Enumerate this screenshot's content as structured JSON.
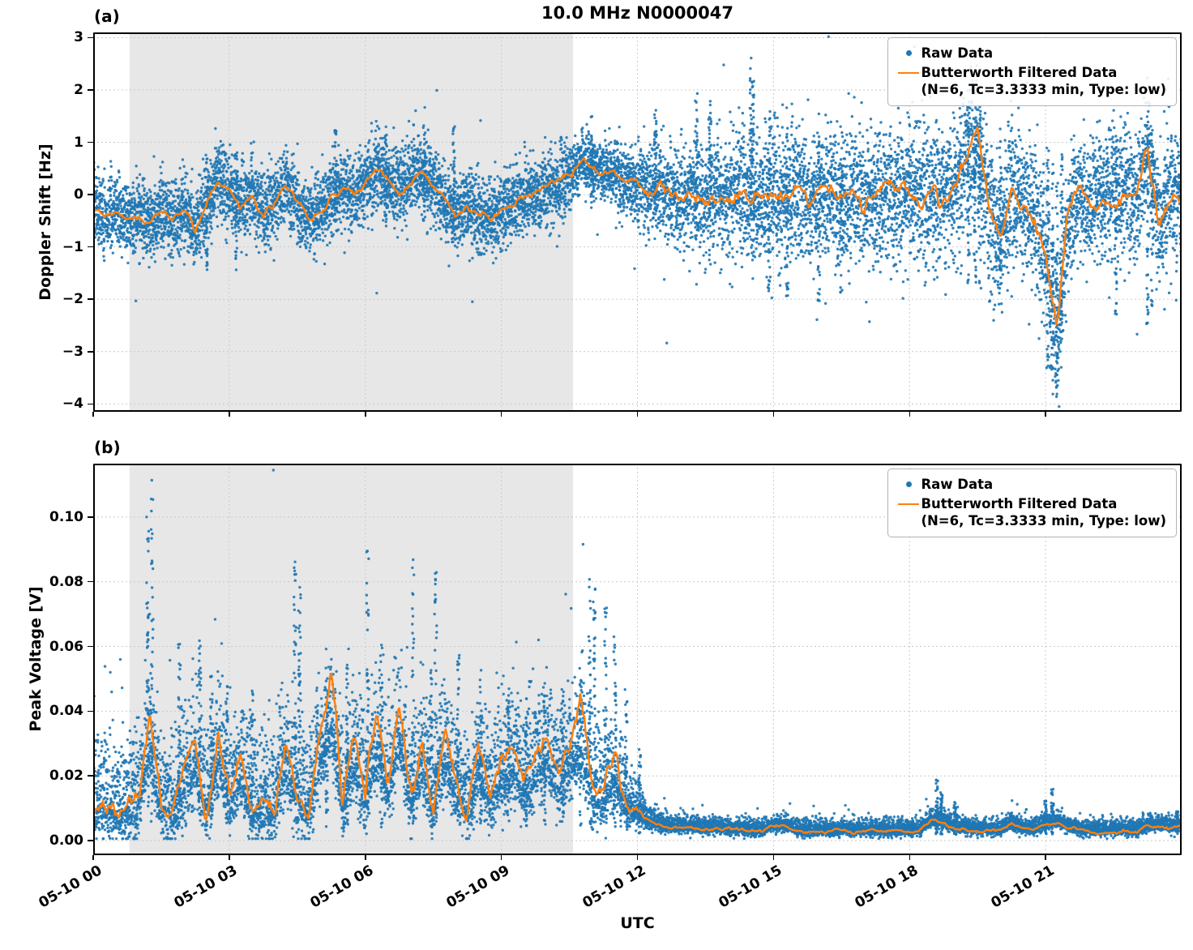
{
  "title": "10.0 MHz N0000047",
  "xlabel": "UTC",
  "x_tick_labels": [
    "05-10 00",
    "05-10 03",
    "05-10 06",
    "05-10 09",
    "05-10 12",
    "05-10 15",
    "05-10 18",
    "05-10 21"
  ],
  "x_tick_hours": [
    0,
    3,
    6,
    9,
    12,
    15,
    18,
    21
  ],
  "colors": {
    "raw": "#1f77b4",
    "filtered": "#ff7f0e",
    "shade": "#e7e7e7",
    "grid": "#c9c9c9",
    "frame": "#000000"
  },
  "legend": {
    "raw_label": "Raw Data",
    "filtered_line1": "Butterworth Filtered Data",
    "filtered_line2": "(N=6, Tc=3.3333 min, Type: low)",
    "location": "upper right"
  },
  "chart_data": [
    {
      "type": "scatter",
      "panel_label": "(a)",
      "ylabel": "Doppler Shift [Hz]",
      "ylim": [
        -4.15,
        3.1
      ],
      "yticks": [
        3,
        2,
        1,
        0,
        -1,
        -2,
        -3,
        -4
      ],
      "ytick_format": "int",
      "x_range_hours": [
        0,
        24
      ],
      "grid": true,
      "shaded_region_hours": [
        0.8,
        10.58
      ],
      "series": [
        {
          "name": "Raw Data",
          "kind": "scatter",
          "color": "#1f77b4"
        },
        {
          "name": "Butterworth Filtered Data (N=6, Tc=3.3333 min, Type: low)",
          "kind": "line",
          "color": "#ff7f0e"
        }
      ],
      "filtered_line": {
        "t0": 0,
        "dt": 0.25,
        "y": [
          -0.25,
          -0.45,
          -0.3,
          -0.55,
          -0.4,
          -0.6,
          -0.3,
          -0.5,
          -0.25,
          -0.7,
          -0.15,
          0.3,
          0.05,
          -0.2,
          0.05,
          -0.35,
          -0.15,
          0.15,
          -0.25,
          -0.5,
          -0.3,
          -0.05,
          0.15,
          -0.1,
          0.2,
          0.5,
          0.3,
          0.1,
          0.3,
          0.5,
          0.2,
          -0.15,
          -0.4,
          -0.2,
          -0.35,
          -0.45,
          -0.3,
          -0.15,
          -0.05,
          0.0,
          0.1,
          0.2,
          0.35,
          0.7,
          0.55,
          0.45,
          0.35,
          0.25,
          0.15,
          0.05,
          0.1,
          -0.05,
          -0.1,
          0.05,
          -0.15,
          0.0,
          -0.1,
          0.1,
          -0.05,
          -0.2,
          0.0,
          -0.1,
          0.05,
          -0.15,
          -0.05,
          0.1,
          -0.1,
          0.0,
          -0.15,
          -0.05,
          0.05,
          -0.1,
          0.0,
          -0.1,
          0.05,
          -0.05,
          0.1,
          0.55,
          1.2,
          -0.35,
          -0.95,
          0.15,
          -0.1,
          -0.4,
          -1.1,
          -2.8,
          -0.55,
          0.1,
          -0.2,
          0.0,
          -0.15,
          0.05,
          -0.1,
          0.9,
          -0.55,
          -0.1,
          -0.2
        ]
      },
      "scatter_envelope": {
        "t": [
          0,
          10.3,
          10.8,
          11.5,
          12,
          12.5,
          13.5,
          15,
          18,
          19,
          19.6,
          20,
          21,
          21.4,
          22,
          24
        ],
        "sigma": [
          0.36,
          0.36,
          0.26,
          0.28,
          0.35,
          0.45,
          0.55,
          0.6,
          0.62,
          0.65,
          0.75,
          0.65,
          0.7,
          0.55,
          0.62,
          0.62
        ]
      },
      "columns": [
        [
          2.5,
          -1.5,
          0.85
        ],
        [
          3.15,
          -1.45,
          0.95
        ],
        [
          5.35,
          -0.7,
          1.3
        ],
        [
          6.45,
          -0.6,
          1.35
        ],
        [
          7.3,
          -0.5,
          1.4
        ],
        [
          7.95,
          -0.6,
          1.35
        ],
        [
          11.0,
          -0.3,
          1.5
        ],
        [
          12.4,
          -0.4,
          1.65
        ],
        [
          13.3,
          -0.6,
          2.1
        ],
        [
          13.6,
          -0.5,
          1.8
        ],
        [
          14.5,
          -0.4,
          2.65
        ],
        [
          14.55,
          -0.5,
          2.2
        ],
        [
          14.9,
          -1.9,
          1.6
        ],
        [
          15.3,
          -2.0,
          1.2
        ],
        [
          16.0,
          -2.1,
          1.3
        ],
        [
          16.5,
          -1.9,
          1.2
        ],
        [
          19.3,
          -1.9,
          1.8
        ],
        [
          19.45,
          -2.1,
          1.7
        ],
        [
          19.55,
          -1.8,
          1.6
        ],
        [
          20.0,
          -1.6,
          1.3
        ],
        [
          21.05,
          -3.3,
          0.9
        ],
        [
          21.15,
          -3.85,
          0.6
        ],
        [
          21.25,
          -3.7,
          0.4
        ],
        [
          21.35,
          -3.0,
          0.8
        ],
        [
          22.55,
          -2.3,
          1.2
        ],
        [
          23.25,
          -2.5,
          1.5
        ],
        [
          23.35,
          -2.2,
          1.3
        ]
      ],
      "line_jitter": {
        "t": [
          0,
          12,
          12.5,
          24
        ],
        "amp": [
          0.06,
          0.06,
          0.12,
          0.12
        ]
      },
      "outlier_prob": 0.012,
      "clamp": [
        -4.05,
        3.02
      ],
      "step_hours": 0.004,
      "points_per_step": 2,
      "seed": 42
    },
    {
      "type": "scatter",
      "panel_label": "(b)",
      "ylabel": "Peak Voltage [V]",
      "ylim": [
        -0.0045,
        0.1165
      ],
      "yticks": [
        0.0,
        0.02,
        0.04,
        0.06,
        0.08,
        0.1
      ],
      "ytick_format": "2f",
      "x_range_hours": [
        0,
        24
      ],
      "grid": true,
      "shaded_region_hours": [
        0.8,
        10.58
      ],
      "series": [
        {
          "name": "Raw Data",
          "kind": "scatter",
          "color": "#1f77b4"
        },
        {
          "name": "Butterworth Filtered Data (N=6, Tc=3.3333 min, Type: low)",
          "kind": "line",
          "color": "#ff7f0e"
        }
      ],
      "filtered_line": {
        "t0": 0,
        "dt": 0.25,
        "y": [
          0.01,
          0.012,
          0.008,
          0.01,
          0.014,
          0.042,
          0.01,
          0.008,
          0.02,
          0.03,
          0.01,
          0.035,
          0.014,
          0.025,
          0.008,
          0.012,
          0.01,
          0.03,
          0.014,
          0.008,
          0.035,
          0.052,
          0.012,
          0.03,
          0.014,
          0.04,
          0.018,
          0.045,
          0.014,
          0.03,
          0.01,
          0.035,
          0.018,
          0.01,
          0.03,
          0.014,
          0.025,
          0.03,
          0.018,
          0.028,
          0.035,
          0.02,
          0.03,
          0.042,
          0.018,
          0.014,
          0.025,
          0.01,
          0.008,
          0.006,
          0.005,
          0.004,
          0.004,
          0.0038,
          0.0035,
          0.0035,
          0.0032,
          0.003,
          0.003,
          0.0028,
          0.0045,
          0.0045,
          0.003,
          0.0028,
          0.003,
          0.0028,
          0.003,
          0.0028,
          0.003,
          0.003,
          0.0028,
          0.003,
          0.0032,
          0.003,
          0.006,
          0.0055,
          0.004,
          0.0035,
          0.0032,
          0.003,
          0.003,
          0.005,
          0.0035,
          0.0032,
          0.005,
          0.0055,
          0.004,
          0.0032,
          0.003,
          0.003,
          0.0028,
          0.003,
          0.0028,
          0.0045,
          0.0045,
          0.004,
          0.0045
        ]
      },
      "scatter_envelope": {
        "t": [
          0,
          10.5,
          11,
          11.5,
          12,
          12.3,
          13,
          24
        ],
        "sigma_up": [
          0.012,
          0.012,
          0.012,
          0.01,
          0.004,
          0.002,
          0.0016,
          0.0016
        ],
        "sigma_down": [
          0.005,
          0.005,
          0.005,
          0.004,
          0.002,
          0.0015,
          0.001,
          0.001
        ]
      },
      "scatter_base": {
        "t": [
          0,
          11.8,
          12.3,
          24
        ],
        "scale": [
          0.62,
          0.62,
          1.0,
          1.0
        ],
        "offset": [
          0.004,
          0.004,
          0.0005,
          0.0005
        ]
      },
      "columns": [
        [
          1.2,
          0.004,
          0.105
        ],
        [
          1.3,
          0.005,
          0.113
        ],
        [
          1.9,
          0.004,
          0.063
        ],
        [
          2.35,
          0.004,
          0.07
        ],
        [
          2.6,
          0.004,
          0.052
        ],
        [
          2.95,
          0.004,
          0.048
        ],
        [
          3.5,
          0.004,
          0.05
        ],
        [
          4.45,
          0.004,
          0.088
        ],
        [
          4.55,
          0.004,
          0.079
        ],
        [
          5.15,
          0.004,
          0.06
        ],
        [
          5.6,
          0.004,
          0.055
        ],
        [
          6.05,
          0.004,
          0.09
        ],
        [
          6.35,
          0.004,
          0.062
        ],
        [
          7.05,
          0.004,
          0.087
        ],
        [
          7.45,
          0.004,
          0.055
        ],
        [
          7.55,
          0.004,
          0.086
        ],
        [
          8.05,
          0.004,
          0.058
        ],
        [
          8.55,
          0.004,
          0.05
        ],
        [
          9.15,
          0.004,
          0.046
        ],
        [
          9.55,
          0.004,
          0.044
        ],
        [
          9.95,
          0.004,
          0.05
        ],
        [
          10.35,
          0.004,
          0.047
        ],
        [
          10.75,
          0.003,
          0.055
        ],
        [
          10.95,
          0.003,
          0.081
        ],
        [
          11.05,
          0.003,
          0.078
        ],
        [
          11.3,
          0.003,
          0.072
        ],
        [
          11.5,
          0.003,
          0.065
        ],
        [
          11.75,
          0.003,
          0.048
        ],
        [
          12.05,
          0.002,
          0.03
        ],
        [
          18.6,
          0.002,
          0.019
        ],
        [
          18.7,
          0.002,
          0.015
        ],
        [
          19.0,
          0.002,
          0.012
        ],
        [
          21.0,
          0.002,
          0.013
        ],
        [
          21.15,
          0.002,
          0.016
        ],
        [
          23.9,
          0.002,
          0.009
        ]
      ],
      "line_jitter": {
        "t": [
          0,
          11.8,
          12.2,
          24
        ],
        "amp": [
          0.0025,
          0.0025,
          0.0004,
          0.0004
        ]
      },
      "outlier_prob": 0.01,
      "clamp": [
        0.0006,
        0.1145
      ],
      "step_hours": 0.004,
      "points_per_step": 2,
      "seed": 77
    }
  ]
}
